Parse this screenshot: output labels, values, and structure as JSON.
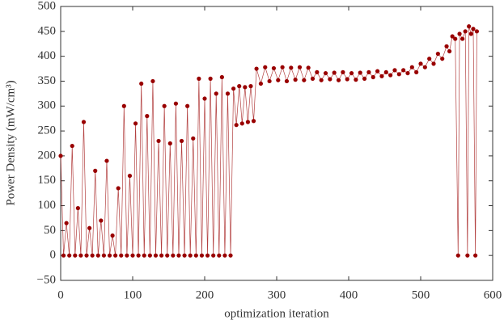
{
  "chart_data": {
    "type": "line",
    "x_label": "optimization iteration",
    "y_label": "Power Density (mW/cm³)",
    "xlim": [
      0,
      600
    ],
    "xticks": [
      0,
      100,
      200,
      300,
      400,
      500,
      600
    ],
    "ylim": [
      -50,
      500
    ],
    "yticks": [
      {
        "value": -50,
        "label": "−50"
      },
      0,
      50,
      100,
      150,
      200,
      250,
      300,
      350,
      400,
      450,
      500
    ],
    "grid": false,
    "series": [
      {
        "name": "Power Density",
        "color": "#990000",
        "x": [
          0,
          4,
          8,
          12,
          16,
          20,
          24,
          28,
          32,
          36,
          40,
          44,
          48,
          52,
          56,
          60,
          64,
          68,
          72,
          76,
          80,
          84,
          88,
          92,
          96,
          100,
          104,
          108,
          112,
          116,
          120,
          124,
          128,
          132,
          136,
          140,
          144,
          148,
          152,
          156,
          160,
          164,
          168,
          172,
          176,
          180,
          184,
          188,
          192,
          196,
          200,
          204,
          208,
          212,
          216,
          220,
          224,
          228,
          232,
          236,
          240,
          244,
          248,
          252,
          256,
          260,
          264,
          268,
          272,
          278,
          284,
          290,
          296,
          302,
          308,
          314,
          320,
          326,
          332,
          338,
          344,
          350,
          356,
          362,
          368,
          374,
          380,
          386,
          392,
          398,
          404,
          410,
          416,
          422,
          428,
          434,
          440,
          446,
          452,
          458,
          464,
          470,
          476,
          482,
          488,
          494,
          500,
          506,
          512,
          518,
          524,
          530,
          536,
          540,
          544,
          548,
          552,
          554,
          558,
          562,
          565,
          567,
          570,
          573,
          576,
          578
        ],
        "values": [
          200,
          0,
          65,
          0,
          220,
          0,
          95,
          0,
          268,
          0,
          55,
          0,
          170,
          0,
          70,
          0,
          190,
          0,
          40,
          0,
          135,
          0,
          300,
          0,
          160,
          0,
          265,
          0,
          345,
          0,
          280,
          0,
          350,
          0,
          230,
          0,
          300,
          0,
          225,
          0,
          305,
          0,
          230,
          0,
          300,
          0,
          235,
          0,
          355,
          0,
          315,
          0,
          355,
          0,
          325,
          0,
          358,
          0,
          325,
          0,
          335,
          262,
          340,
          265,
          338,
          268,
          340,
          270,
          375,
          345,
          378,
          350,
          376,
          352,
          378,
          350,
          377,
          353,
          378,
          352,
          377,
          355,
          368,
          352,
          366,
          354,
          367,
          352,
          368,
          354,
          366,
          353,
          367,
          355,
          368,
          358,
          370,
          360,
          368,
          362,
          372,
          364,
          372,
          366,
          378,
          368,
          385,
          378,
          395,
          385,
          405,
          395,
          420,
          410,
          440,
          435,
          0,
          445,
          435,
          450,
          0,
          460,
          445,
          455,
          0,
          450
        ]
      }
    ]
  }
}
